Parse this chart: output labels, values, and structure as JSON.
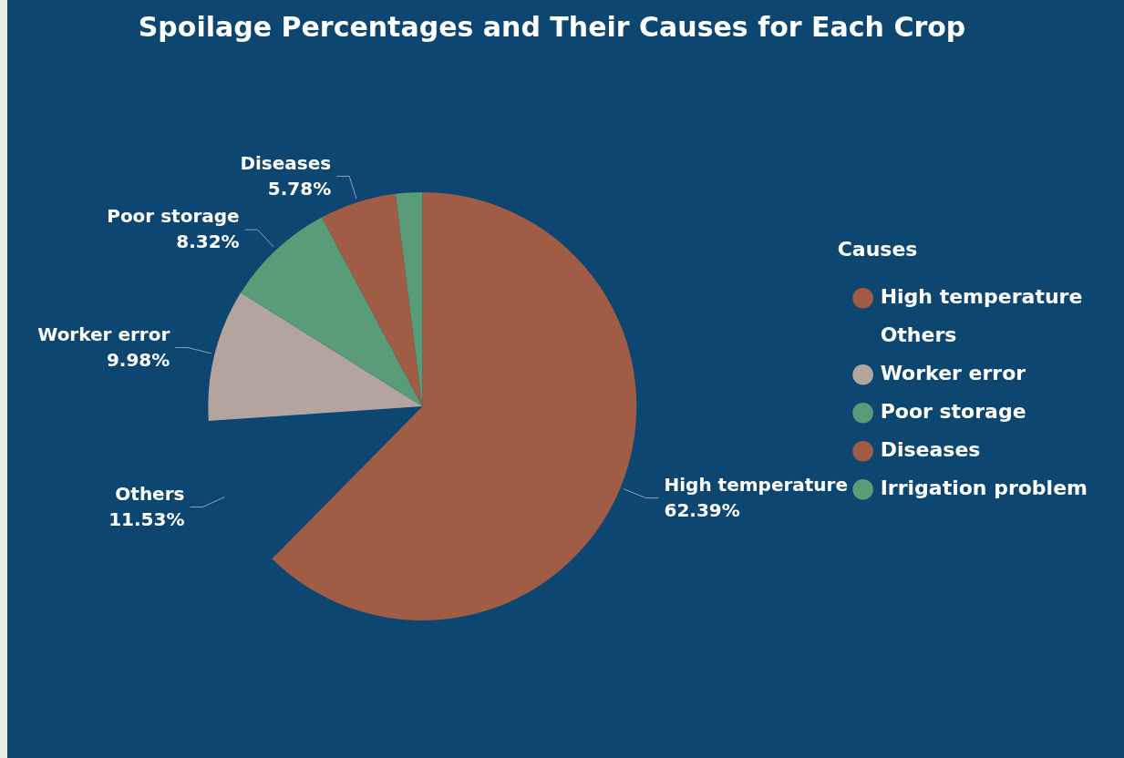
{
  "chart_data": {
    "type": "pie",
    "title": "Spoilage Percentages and Their Causes for Each Crop",
    "categories": [
      "High temperature",
      "Others",
      "Worker error",
      "Poor storage",
      "Diseases",
      "Irrigation problem"
    ],
    "values": [
      62.39,
      11.53,
      9.98,
      8.32,
      5.78,
      2.0
    ],
    "colors": [
      "#a05c44",
      "#0d4671",
      "#b3a59e",
      "#5a9b78",
      "#a05c44",
      "#5a9b78"
    ],
    "value_labels": [
      "62.39%",
      "11.53%",
      "9.98%",
      "8.32%",
      "5.78%",
      null
    ],
    "legend": "right",
    "legend_title": "Causes"
  }
}
